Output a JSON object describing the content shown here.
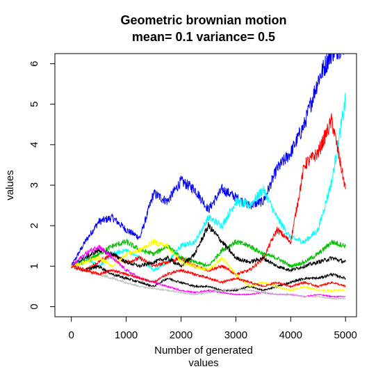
{
  "chart_data": {
    "type": "line",
    "title": "Geometric brownian motion",
    "subtitle": "mean= 0.1 variance= 0.5",
    "xlabel": "Number of generated values",
    "xlabel_lines": [
      "Number of generated",
      "values"
    ],
    "ylabel": "values",
    "xlim": [
      -300,
      5200
    ],
    "ylim": [
      -0.25,
      6.25
    ],
    "xticks": [
      0,
      1000,
      2000,
      3000,
      4000,
      5000
    ],
    "yticks": [
      0,
      1,
      2,
      3,
      4,
      5,
      6
    ],
    "grid": false,
    "legend": "none",
    "series": [
      {
        "color": "#0000ff",
        "x": [
          0,
          250,
          500,
          750,
          1000,
          1250,
          1500,
          1750,
          2000,
          2250,
          2500,
          2750,
          3000,
          3250,
          3500,
          3750,
          4000,
          4250,
          4500,
          4750,
          5000
        ],
        "values": [
          1.0,
          1.6,
          2.1,
          2.2,
          1.9,
          1.7,
          2.8,
          2.6,
          3.1,
          2.9,
          2.4,
          2.9,
          2.7,
          2.5,
          2.6,
          3.4,
          3.8,
          4.5,
          5.6,
          6.3,
          6.5
        ]
      },
      {
        "color": "#00ffff",
        "x": [
          0,
          250,
          500,
          750,
          1000,
          1250,
          1500,
          1750,
          2000,
          2250,
          2500,
          2750,
          3000,
          3250,
          3500,
          3750,
          4000,
          4250,
          4500,
          4750,
          5000
        ],
        "values": [
          1.0,
          1.2,
          1.0,
          1.3,
          1.4,
          1.2,
          0.9,
          1.1,
          1.5,
          1.6,
          2.2,
          2.0,
          2.6,
          2.5,
          2.9,
          2.2,
          1.7,
          1.6,
          1.9,
          3.1,
          5.1
        ]
      },
      {
        "color": "#ff0000",
        "x": [
          0,
          250,
          500,
          750,
          1000,
          1250,
          1500,
          1750,
          2000,
          2250,
          2500,
          2750,
          3000,
          3250,
          3500,
          3750,
          4000,
          4250,
          4500,
          4750,
          5000
        ],
        "values": [
          1.0,
          0.9,
          1.1,
          1.3,
          1.1,
          1.2,
          1.0,
          1.1,
          1.2,
          1.0,
          0.9,
          1.0,
          0.8,
          0.9,
          1.2,
          1.9,
          1.6,
          3.5,
          3.8,
          4.6,
          2.9
        ]
      },
      {
        "color": "#00c000",
        "x": [
          0,
          250,
          500,
          750,
          1000,
          1250,
          1500,
          1750,
          2000,
          2250,
          2500,
          2750,
          3000,
          3250,
          3500,
          3750,
          4000,
          4250,
          4500,
          4750,
          5000
        ],
        "values": [
          1.0,
          1.1,
          1.3,
          1.5,
          1.6,
          1.4,
          1.3,
          1.5,
          1.2,
          1.1,
          1.0,
          1.4,
          1.6,
          1.5,
          1.3,
          1.2,
          1.0,
          1.1,
          1.3,
          1.6,
          1.5
        ]
      },
      {
        "color": "#000000",
        "x": [
          0,
          250,
          500,
          750,
          1000,
          1250,
          1500,
          1750,
          2000,
          2250,
          2500,
          2750,
          3000,
          3250,
          3500,
          3750,
          4000,
          4250,
          4500,
          4750,
          5000
        ],
        "values": [
          1.0,
          1.2,
          1.4,
          1.3,
          1.1,
          1.0,
          1.1,
          1.2,
          1.0,
          1.3,
          2.0,
          1.6,
          1.2,
          1.1,
          1.2,
          1.0,
          0.9,
          1.0,
          1.1,
          1.2,
          1.1
        ]
      },
      {
        "color": "#000000",
        "x": [
          0,
          250,
          500,
          750,
          1000,
          1250,
          1500,
          1750,
          2000,
          2250,
          2500,
          2750,
          3000,
          3250,
          3500,
          3750,
          4000,
          4250,
          4500,
          4750,
          5000
        ],
        "values": [
          1.0,
          0.9,
          1.0,
          0.8,
          0.7,
          0.6,
          0.5,
          0.7,
          0.6,
          0.5,
          0.5,
          0.4,
          0.4,
          0.5,
          0.4,
          0.5,
          0.6,
          0.7,
          0.7,
          0.8,
          0.7
        ]
      },
      {
        "color": "#ffff00",
        "x": [
          0,
          250,
          500,
          750,
          1000,
          1250,
          1500,
          1750,
          2000,
          2250,
          2500,
          2750,
          3000,
          3250,
          3500,
          3750,
          4000,
          4250,
          4500,
          4750,
          5000
        ],
        "values": [
          1.0,
          1.1,
          1.2,
          1.0,
          1.3,
          1.4,
          1.6,
          1.5,
          1.1,
          1.0,
          0.9,
          1.2,
          0.8,
          0.5,
          0.6,
          0.5,
          0.4,
          0.5,
          0.4,
          0.4,
          0.4
        ]
      },
      {
        "color": "#ff00ff",
        "x": [
          0,
          250,
          500,
          750,
          1000,
          1250,
          1500,
          1750,
          2000,
          2250,
          2500,
          2750,
          3000,
          3250,
          3500,
          3750,
          4000,
          4250,
          4500,
          4750,
          5000
        ],
        "values": [
          1.0,
          1.3,
          1.5,
          1.2,
          0.9,
          0.7,
          0.6,
          0.5,
          0.4,
          0.35,
          0.4,
          0.35,
          0.3,
          0.3,
          0.35,
          0.3,
          0.3,
          0.25,
          0.3,
          0.25,
          0.25
        ]
      },
      {
        "color": "#bebebe",
        "x": [
          0,
          250,
          500,
          750,
          1000,
          1250,
          1500,
          1750,
          2000,
          2250,
          2500,
          2750,
          3000,
          3250,
          3500,
          3750,
          4000,
          4250,
          4500,
          4750,
          5000
        ],
        "values": [
          1.0,
          0.9,
          0.8,
          0.7,
          0.6,
          0.5,
          0.45,
          0.4,
          0.35,
          0.3,
          0.35,
          0.4,
          0.45,
          0.4,
          0.35,
          0.3,
          0.3,
          0.25,
          0.25,
          0.2,
          0.2
        ]
      },
      {
        "color": "#ff0000",
        "x": [
          0,
          250,
          500,
          750,
          1000,
          1250,
          1500,
          1750,
          2000,
          2250,
          2500,
          2750,
          3000,
          3250,
          3500,
          3750,
          4000,
          4250,
          4500,
          4750,
          5000
        ],
        "values": [
          1.0,
          0.9,
          0.8,
          0.9,
          0.8,
          0.7,
          0.6,
          0.8,
          0.9,
          0.8,
          0.7,
          0.6,
          0.7,
          0.6,
          0.5,
          0.6,
          0.5,
          0.6,
          0.5,
          0.6,
          0.5
        ]
      }
    ]
  }
}
